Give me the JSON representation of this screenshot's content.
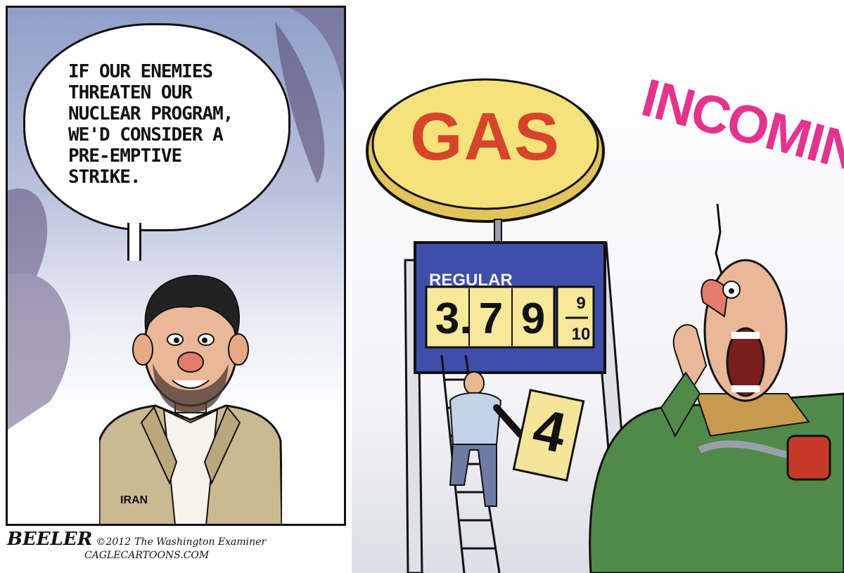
{
  "speech_bubble": {
    "text": "IF OUR ENEMIES\nTHREATEN OUR\nNUCLEAR PROGRAM,\nWE'D CONSIDER A\nPRE-EMPTIVE\nSTRIKE."
  },
  "left_character": {
    "jacket_label": "IRAN"
  },
  "credits": {
    "signature": "BEELER",
    "year": "©2012",
    "publication": "The Washington Examiner",
    "website": "CAGLECARTOONS.COM"
  },
  "gas_sign": {
    "label": "GAS",
    "price_label": "REGULAR",
    "price_digits": [
      "3",
      ".",
      "7",
      "9"
    ],
    "price_fraction_top": "9",
    "price_fraction_bottom": "10",
    "new_card_digit": "4"
  },
  "right_character": {
    "exclamation": "INCOMING!!"
  },
  "colors": {
    "gas_sign_yellow": "#f6e27a",
    "gas_text_red": "#d6452a",
    "price_board_blue": "#3f4ea8",
    "incoming_pink": "#e3338d",
    "man_jacket_green": "#4f8a4a",
    "left_jacket_tan": "#cbb991"
  }
}
